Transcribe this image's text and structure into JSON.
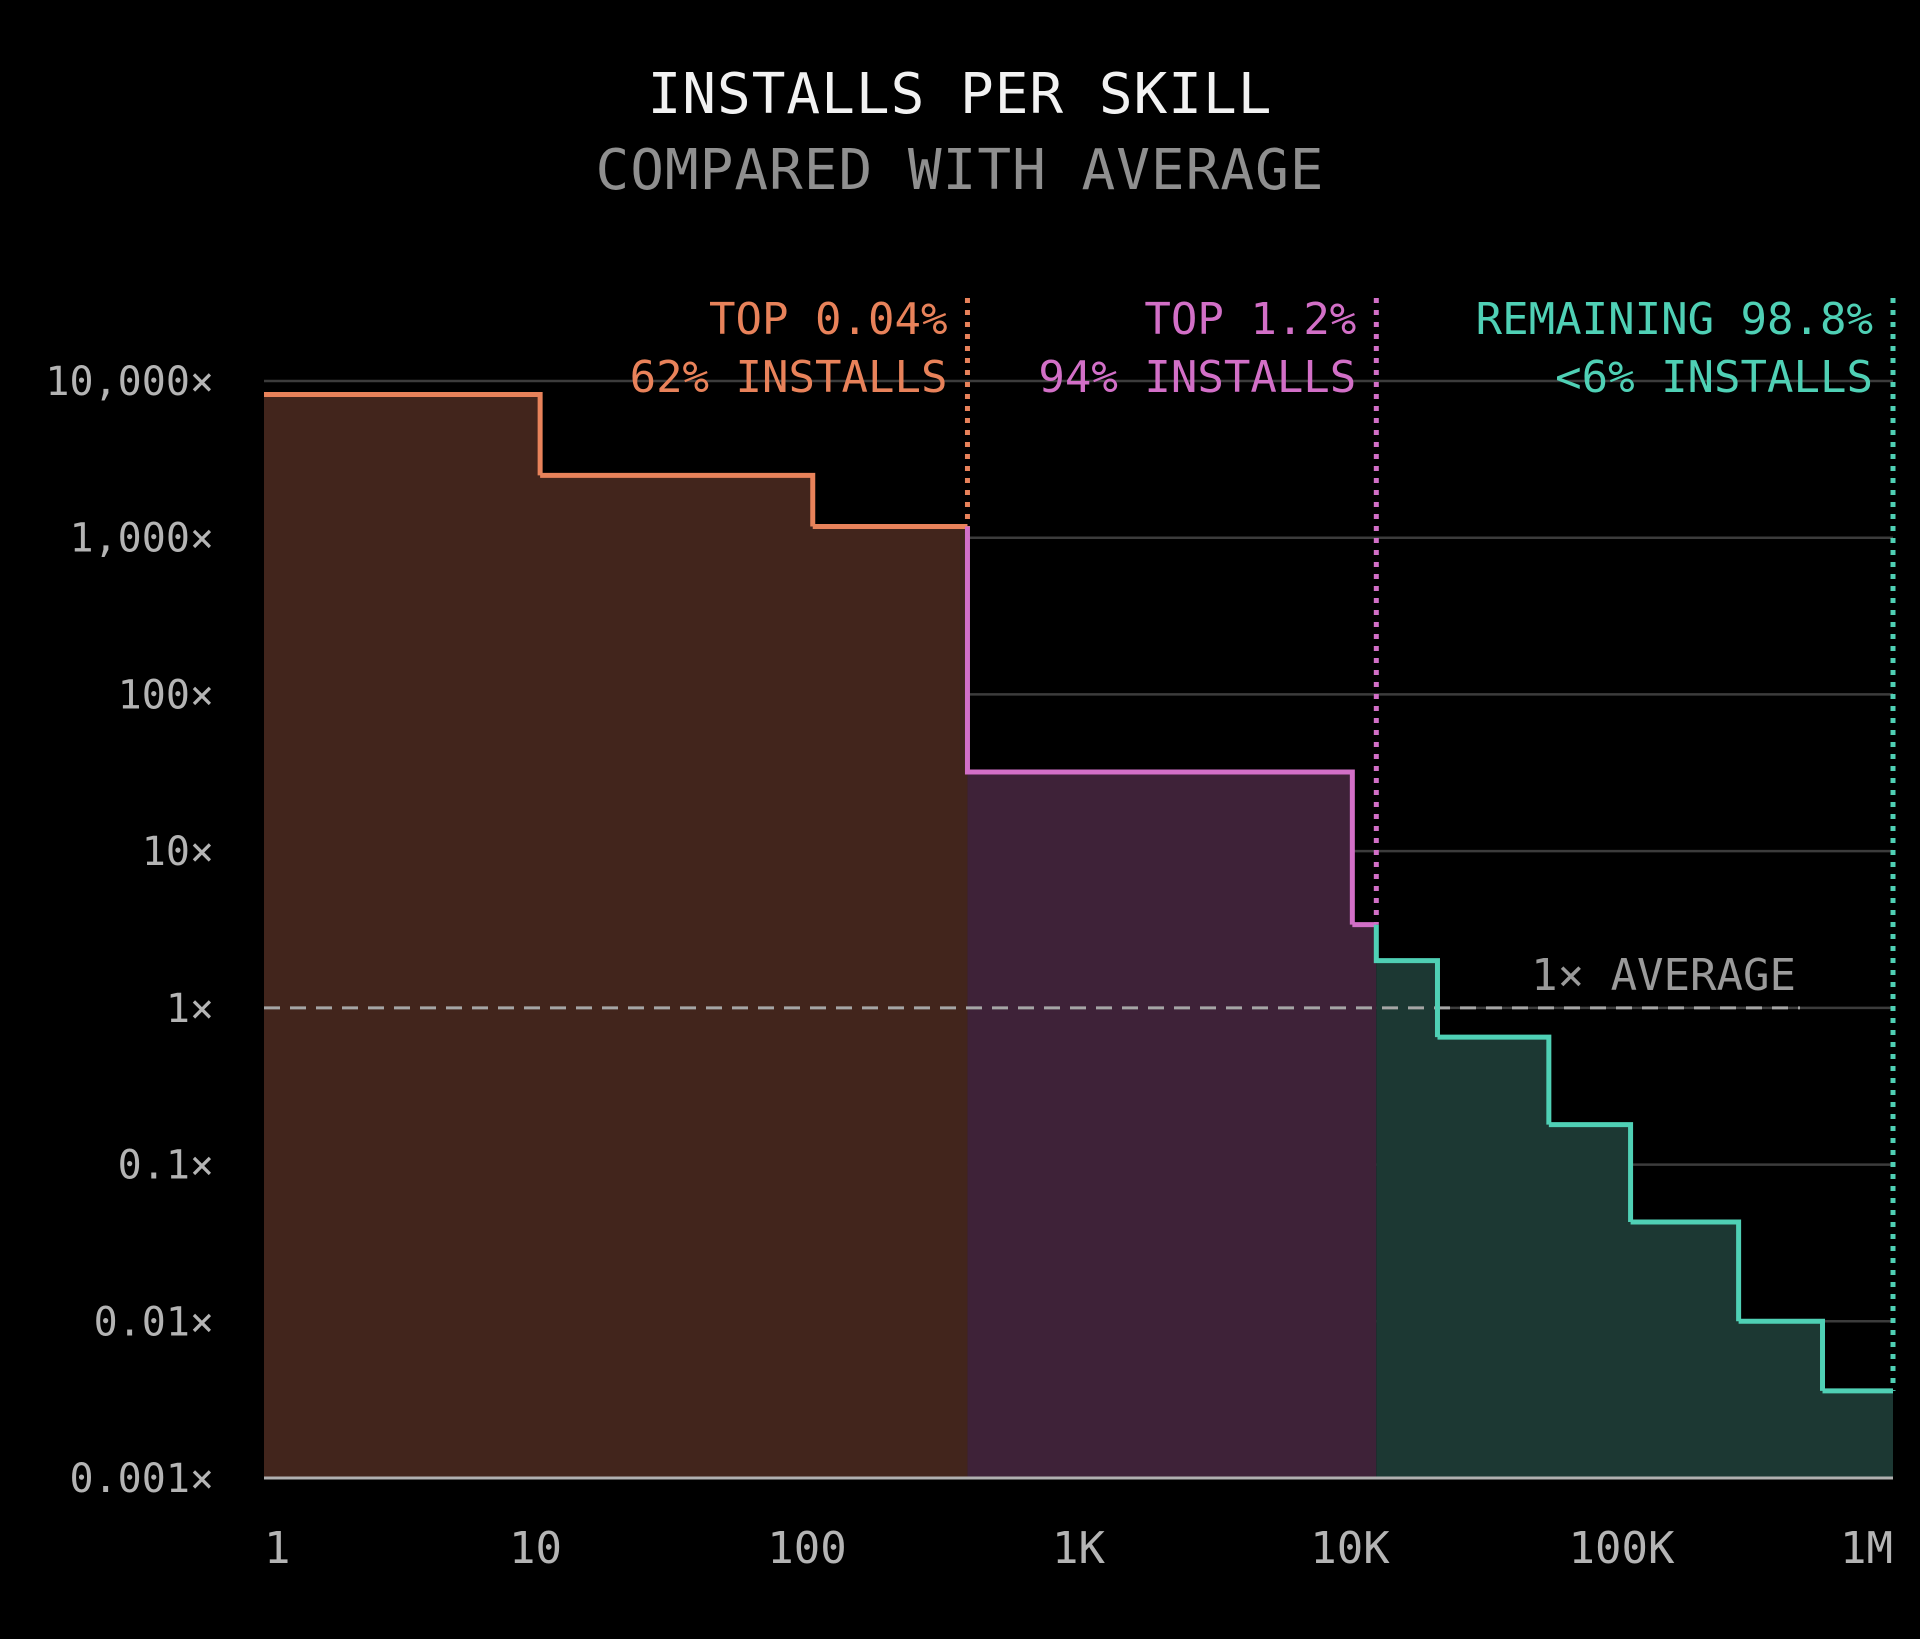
{
  "chart_data": {
    "type": "area",
    "title": "INSTALLS PER SKILL",
    "subtitle": "COMPARED WITH AVERAGE",
    "xscale": "log",
    "yscale": "log",
    "xlim": [
      1,
      1000000
    ],
    "ylim": [
      0.001,
      10000
    ],
    "x_ticks": [
      {
        "value": 1,
        "label": "1"
      },
      {
        "value": 10,
        "label": "10"
      },
      {
        "value": 100,
        "label": "100"
      },
      {
        "value": 1000,
        "label": "1K"
      },
      {
        "value": 10000,
        "label": "10K"
      },
      {
        "value": 100000,
        "label": "100K"
      },
      {
        "value": 1000000,
        "label": "1M"
      }
    ],
    "y_ticks": [
      {
        "value": 10000,
        "label": "10,000×"
      },
      {
        "value": 1000,
        "label": "1,000×"
      },
      {
        "value": 100,
        "label": "100×"
      },
      {
        "value": 10,
        "label": "10×"
      },
      {
        "value": 1,
        "label": "1×"
      },
      {
        "value": 0.1,
        "label": "0.1×"
      },
      {
        "value": 0.01,
        "label": "0.01×"
      },
      {
        "value": 0.001,
        "label": "0.001×"
      }
    ],
    "grid": true,
    "reference_line": {
      "value": 1,
      "label": "1× AVERAGE"
    },
    "series": [
      {
        "color": "#e8825a",
        "fill": "#42251c",
        "steps": [
          {
            "x0": 1,
            "x1": 10.4,
            "y": 8200
          },
          {
            "x0": 10.4,
            "x1": 105,
            "y": 2500
          },
          {
            "x0": 105,
            "x1": 390,
            "y": 1180
          }
        ]
      },
      {
        "color": "#d26fc7",
        "fill": "#3e2238",
        "steps": [
          {
            "x0": 390,
            "x1": 10200,
            "y": 32
          },
          {
            "x0": 10200,
            "x1": 12500,
            "y": 3.4
          }
        ]
      },
      {
        "color": "#4fd0b5",
        "fill": "#1c3833",
        "steps": [
          {
            "x0": 12500,
            "x1": 21000,
            "y": 2.0
          },
          {
            "x0": 21000,
            "x1": 54000,
            "y": 0.65
          },
          {
            "x0": 54000,
            "x1": 108000,
            "y": 0.18
          },
          {
            "x0": 108000,
            "x1": 270000,
            "y": 0.043
          },
          {
            "x0": 270000,
            "x1": 550000,
            "y": 0.01
          },
          {
            "x0": 550000,
            "x1": 1120000,
            "y": 0.0036
          }
        ]
      }
    ],
    "segments": [
      {
        "boundary_x": 390,
        "color": "#e8825a",
        "label1": "TOP 0.04%",
        "label2": "62% INSTALLS"
      },
      {
        "boundary_x": 12500,
        "color": "#d26fc7",
        "label1": "TOP 1.2%",
        "label2": "94% INSTALLS"
      },
      {
        "boundary_x": 1120000,
        "color": "#4fd0b5",
        "label1": "REMAINING 98.8%",
        "label2": "<6% INSTALLS"
      }
    ]
  }
}
